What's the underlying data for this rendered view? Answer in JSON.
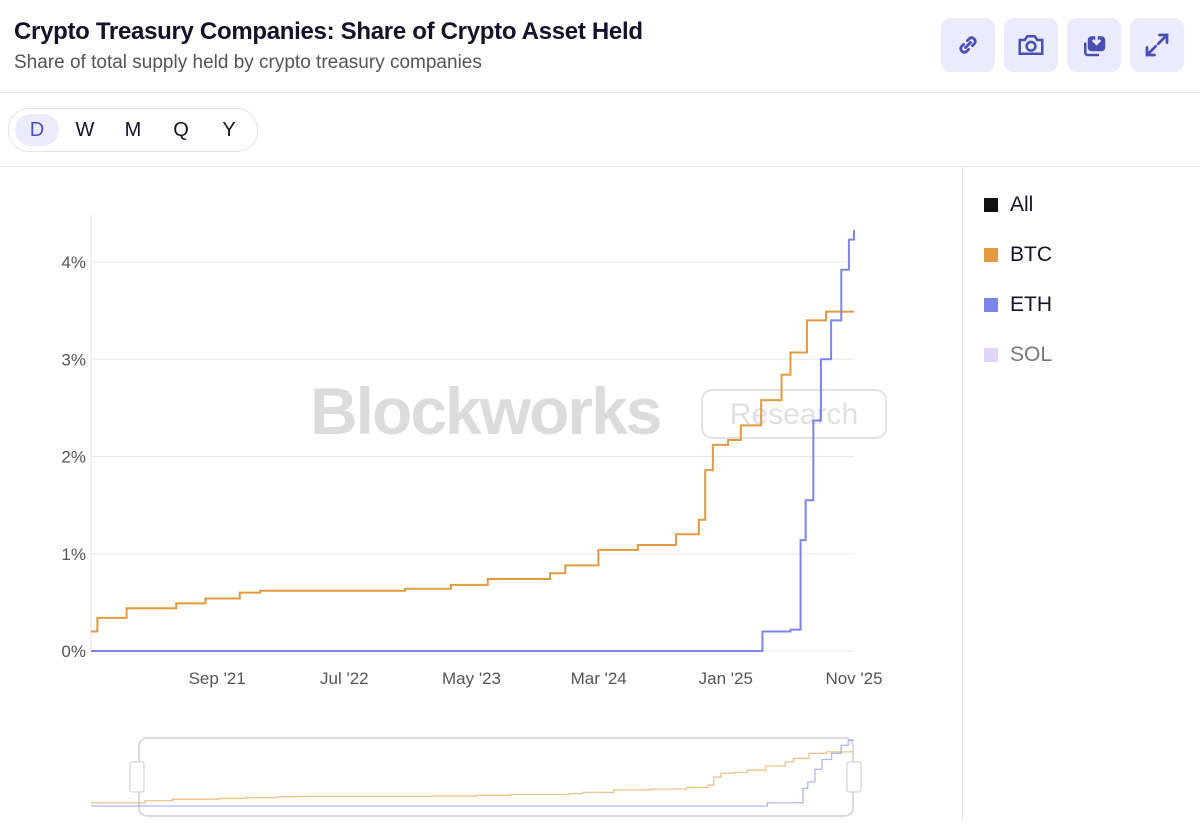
{
  "header": {
    "title": "Crypto Treasury Companies: Share of Crypto Asset Held",
    "subtitle": "Share of total supply held by crypto treasury companies"
  },
  "toolbar": [
    {
      "name": "link",
      "icon": "link-icon"
    },
    {
      "name": "screenshot",
      "icon": "camera-icon"
    },
    {
      "name": "download",
      "icon": "download-icon"
    },
    {
      "name": "fullscreen",
      "icon": "expand-icon"
    }
  ],
  "periods": [
    "D",
    "W",
    "M",
    "Q",
    "Y"
  ],
  "active_period": "D",
  "watermark": {
    "brand": "Blockworks",
    "tag": "Research"
  },
  "legend": [
    {
      "label": "All",
      "color": "#111111",
      "active": true
    },
    {
      "label": "BTC",
      "color": "#e39a3e",
      "active": true
    },
    {
      "label": "ETH",
      "color": "#7b86e8",
      "active": true
    },
    {
      "label": "SOL",
      "color": "#e2d4fb",
      "active": false
    }
  ],
  "chart_data": {
    "type": "line",
    "title": "Crypto Treasury Companies: Share of Crypto Asset Held",
    "xlabel": "",
    "ylabel": "",
    "x_unit": "months since start of series",
    "xlim": [
      0,
      60
    ],
    "ylim": [
      0,
      4.5
    ],
    "yticks": [
      {
        "v": 0,
        "label": "0%"
      },
      {
        "v": 1,
        "label": "1%"
      },
      {
        "v": 2,
        "label": "2%"
      },
      {
        "v": 3,
        "label": "3%"
      },
      {
        "v": 4,
        "label": "4%"
      }
    ],
    "xticks": [
      {
        "v": 10,
        "label": "Sep '21"
      },
      {
        "v": 20,
        "label": "Jul '22"
      },
      {
        "v": 30,
        "label": "May '23"
      },
      {
        "v": 40,
        "label": "Mar '24"
      },
      {
        "v": 50,
        "label": "Jan '25"
      },
      {
        "v": 60,
        "label": "Nov '25"
      }
    ],
    "series": [
      {
        "name": "BTC",
        "color": "#e39a3e",
        "x": [
          0,
          0.5,
          2.8,
          6.7,
          9,
          11.7,
          13.3,
          24.7,
          28.3,
          31.2,
          36.1,
          37.3,
          39.9,
          43,
          46,
          47.8,
          48.3,
          48.9,
          50.1,
          51.1,
          52.7,
          54.3,
          55,
          56.3,
          57.8,
          60
        ],
        "y": [
          0.2,
          0.34,
          0.44,
          0.49,
          0.54,
          0.6,
          0.62,
          0.64,
          0.68,
          0.74,
          0.8,
          0.88,
          1.04,
          1.09,
          1.2,
          1.35,
          1.86,
          2.12,
          2.17,
          2.32,
          2.58,
          2.84,
          3.07,
          3.4,
          3.49,
          3.49
        ]
      },
      {
        "name": "ETH",
        "color": "#7b86e8",
        "x": [
          0,
          52.4,
          52.8,
          55,
          55.8,
          56.2,
          56.8,
          57.4,
          58.2,
          59,
          59.6,
          60
        ],
        "y": [
          0,
          0,
          0.2,
          0.22,
          1.14,
          1.55,
          2.37,
          3.0,
          3.4,
          3.92,
          4.23,
          4.33
        ]
      }
    ]
  }
}
